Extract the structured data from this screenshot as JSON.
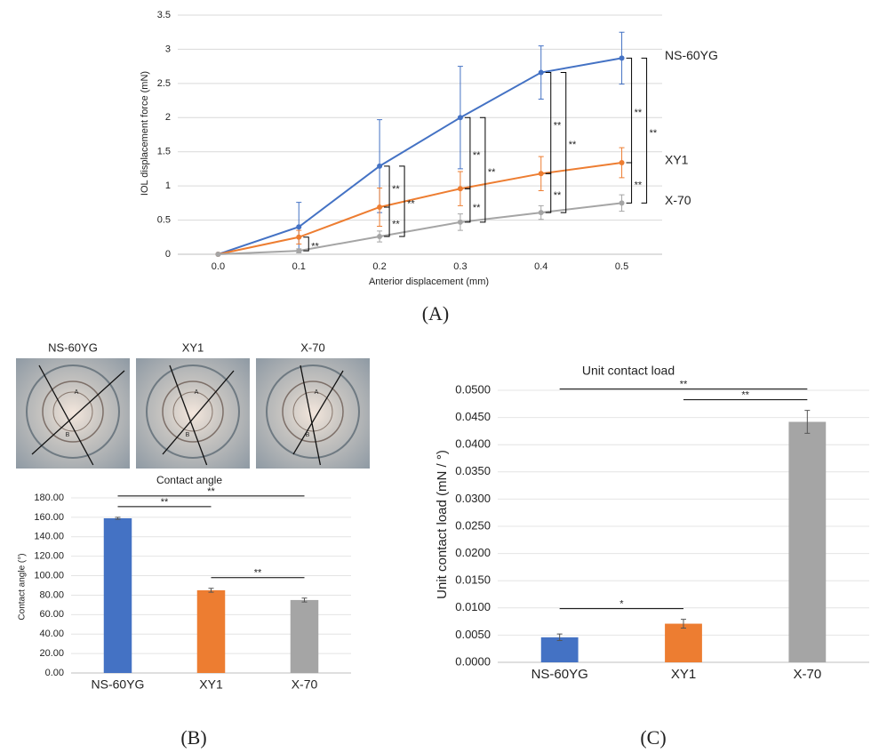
{
  "chart_data": [
    {
      "type": "line",
      "caption": "(A)",
      "x_label": "Anterior displacement (mm)",
      "y_label": "IOL displacement force (mN)",
      "x": [
        0,
        0.1,
        0.2,
        0.3,
        0.4,
        0.5
      ],
      "xlim": [
        -0.05,
        0.55
      ],
      "xticks": [
        {
          "value": 0,
          "label": "0.0"
        },
        {
          "value": 0.1,
          "label": "0.1"
        },
        {
          "value": 0.2,
          "label": "0.2"
        },
        {
          "value": 0.3,
          "label": "0.3"
        },
        {
          "value": 0.4,
          "label": "0.4"
        },
        {
          "value": 0.5,
          "label": "0.5"
        }
      ],
      "ylim": [
        0,
        3.5
      ],
      "yticks": [
        0,
        0.5,
        1,
        1.5,
        2,
        2.5,
        3,
        3.5
      ],
      "grid": true,
      "series": [
        {
          "name": "NS-60YG",
          "color": "#4472c4",
          "values": [
            0,
            0.4,
            1.29,
            2.0,
            2.66,
            2.87
          ],
          "errors": [
            0,
            0.36,
            0.68,
            0.75,
            0.39,
            0.38
          ]
        },
        {
          "name": "XY1",
          "color": "#ed7d31",
          "values": [
            0,
            0.25,
            0.69,
            0.96,
            1.18,
            1.34
          ],
          "errors": [
            0,
            0.1,
            0.28,
            0.25,
            0.25,
            0.22
          ]
        },
        {
          "name": "X-70",
          "color": "#a5a5a5",
          "values": [
            0,
            0.05,
            0.26,
            0.47,
            0.61,
            0.75
          ],
          "errors": [
            0,
            0.03,
            0.08,
            0.12,
            0.1,
            0.12
          ]
        }
      ],
      "annotations": [
        {
          "text": "**",
          "x": 0.1,
          "between": [
            1,
            2
          ]
        },
        {
          "text": "**",
          "x": 0.2,
          "between": [
            0,
            1
          ]
        },
        {
          "text": "**",
          "x": 0.2,
          "between": [
            1,
            2
          ]
        },
        {
          "text": "**",
          "x": 0.2,
          "between": [
            0,
            2
          ]
        },
        {
          "text": "**",
          "x": 0.3,
          "between": [
            0,
            1
          ]
        },
        {
          "text": "**",
          "x": 0.3,
          "between": [
            1,
            2
          ]
        },
        {
          "text": "**",
          "x": 0.3,
          "between": [
            0,
            2
          ]
        },
        {
          "text": "**",
          "x": 0.4,
          "between": [
            0,
            1
          ]
        },
        {
          "text": "**",
          "x": 0.4,
          "between": [
            1,
            2
          ]
        },
        {
          "text": "**",
          "x": 0.4,
          "between": [
            0,
            2
          ]
        },
        {
          "text": "**",
          "x": 0.5,
          "between": [
            0,
            1
          ]
        },
        {
          "text": "**",
          "x": 0.5,
          "between": [
            1,
            2
          ]
        },
        {
          "text": "**",
          "x": 0.5,
          "between": [
            0,
            2
          ]
        }
      ]
    },
    {
      "type": "bar",
      "title": "Contact angle",
      "caption": "(B)",
      "y_label": "Contact angle (°)",
      "categories": [
        "NS-60YG",
        "XY1",
        "X-70"
      ],
      "values": [
        159,
        85,
        75
      ],
      "errors": [
        1,
        2,
        2
      ],
      "colors": [
        "#4472c4",
        "#ed7d31",
        "#a5a5a5"
      ],
      "ylim": [
        0,
        180
      ],
      "yticks": [
        {
          "value": 0,
          "label": "0.00"
        },
        {
          "value": 20,
          "label": "20.00"
        },
        {
          "value": 40,
          "label": "40.00"
        },
        {
          "value": 60,
          "label": "60.00"
        },
        {
          "value": 80,
          "label": "80.00"
        },
        {
          "value": 100,
          "label": "100.00"
        },
        {
          "value": 120,
          "label": "120.00"
        },
        {
          "value": 140,
          "label": "140.00"
        },
        {
          "value": 160,
          "label": "160.00"
        },
        {
          "value": 180,
          "label": "180.00"
        }
      ],
      "grid": true,
      "annotations": [
        {
          "text": "**",
          "between": [
            0,
            1
          ]
        },
        {
          "text": "**",
          "between": [
            0,
            2
          ]
        },
        {
          "text": "**",
          "between": [
            1,
            2
          ]
        }
      ],
      "images": [
        {
          "label": "NS-60YG",
          "marks": [
            "A",
            "B"
          ]
        },
        {
          "label": "XY1",
          "marks": [
            "A",
            "B"
          ]
        },
        {
          "label": "X-70",
          "marks": [
            "A",
            "B"
          ]
        }
      ]
    },
    {
      "type": "bar",
      "title": "Unit contact load",
      "caption": "(C)",
      "y_label": "Unit contact load (mN / °)",
      "categories": [
        "NS-60YG",
        "XY1",
        "X-70"
      ],
      "values": [
        0.0046,
        0.0071,
        0.0442
      ],
      "errors": [
        0.0006,
        0.0008,
        0.0021
      ],
      "colors": [
        "#4472c4",
        "#ed7d31",
        "#a5a5a5"
      ],
      "ylim": [
        0,
        0.05
      ],
      "yticks": [
        {
          "value": 0,
          "label": "0.0000"
        },
        {
          "value": 0.005,
          "label": "0.0050"
        },
        {
          "value": 0.01,
          "label": "0.0100"
        },
        {
          "value": 0.015,
          "label": "0.0150"
        },
        {
          "value": 0.02,
          "label": "0.0200"
        },
        {
          "value": 0.025,
          "label": "0.0250"
        },
        {
          "value": 0.03,
          "label": "0.0300"
        },
        {
          "value": 0.035,
          "label": "0.0350"
        },
        {
          "value": 0.04,
          "label": "0.0400"
        },
        {
          "value": 0.045,
          "label": "0.0450"
        },
        {
          "value": 0.05,
          "label": "0.0500"
        }
      ],
      "grid": true,
      "annotations": [
        {
          "text": "*",
          "between": [
            0,
            1
          ]
        },
        {
          "text": "**",
          "between": [
            0,
            2
          ]
        },
        {
          "text": "**",
          "between": [
            1,
            2
          ]
        }
      ]
    }
  ]
}
